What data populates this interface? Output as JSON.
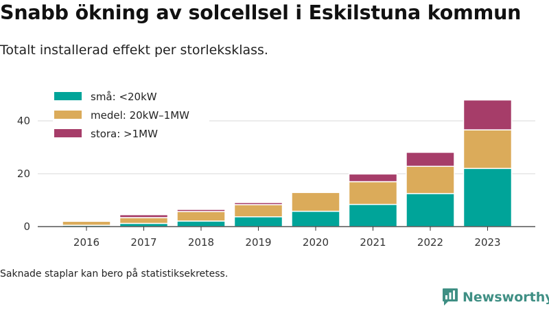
{
  "header": {
    "title": "Snabb ökning av solcellsel i Eskilstuna kommun",
    "subtitle": "Totalt installerad effekt per storleksklass."
  },
  "footer": {
    "note": "Saknade staplar kan bero på statistiksekretess.",
    "brand": "Newsworthy",
    "brand_icon": "newsworthy-logo-icon"
  },
  "colors": {
    "small": "#00a499",
    "medium": "#dbab5a",
    "large": "#a63d69",
    "grid": "#d9d9d9",
    "axis": "#333333",
    "brand": "#3f8f84"
  },
  "chart_data": {
    "type": "bar",
    "stacked": true,
    "categories": [
      "2016",
      "2017",
      "2018",
      "2019",
      "2020",
      "2021",
      "2022",
      "2023"
    ],
    "series": [
      {
        "name": "små: <20kW",
        "values": [
          0.5,
          1.2,
          2.1,
          3.7,
          5.8,
          8.4,
          12.5,
          22.0
        ]
      },
      {
        "name": "medel: 20kW–1MW",
        "values": [
          1.5,
          2.2,
          3.6,
          4.6,
          7.1,
          8.6,
          10.3,
          14.6
        ]
      },
      {
        "name": "stora: >1MW",
        "values": [
          0,
          1.1,
          0.8,
          0.8,
          0,
          2.9,
          5.3,
          11.3
        ]
      }
    ],
    "yticks": [
      0,
      20,
      40
    ],
    "ylim": [
      0,
      48
    ],
    "xlabel": "",
    "ylabel": "",
    "grid": true,
    "legend": "top-left"
  }
}
